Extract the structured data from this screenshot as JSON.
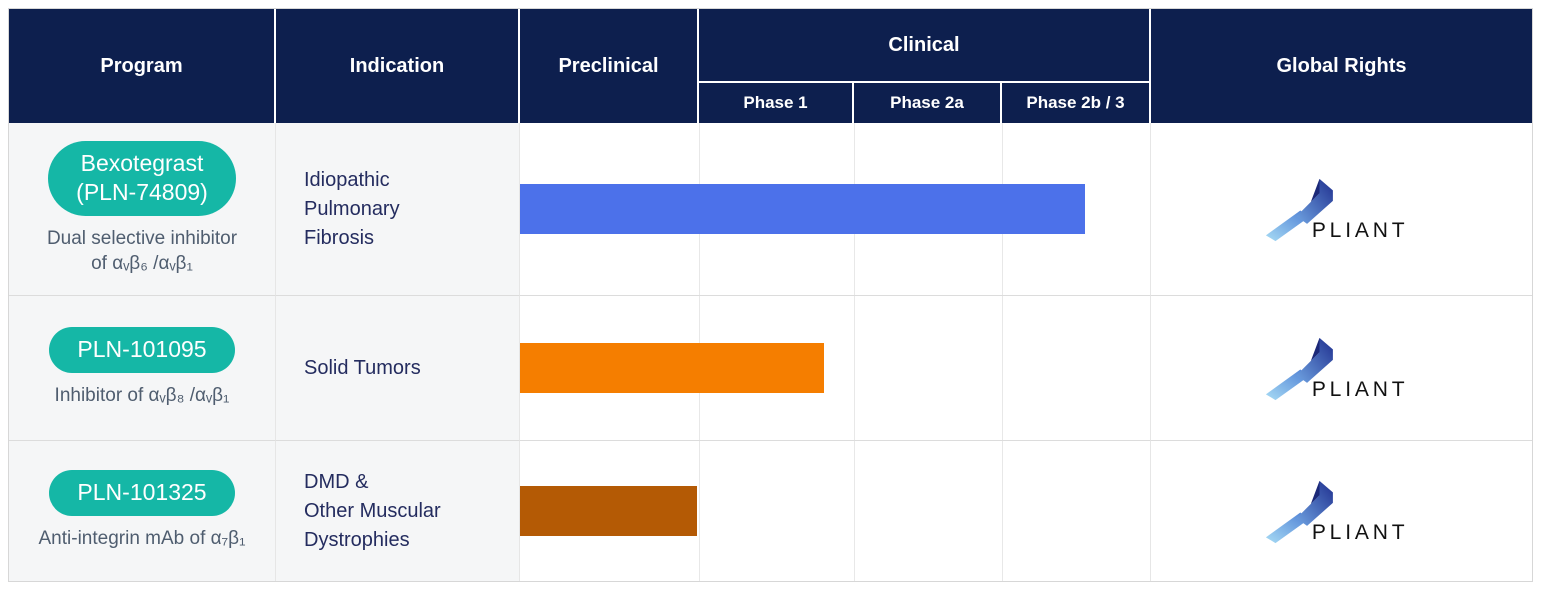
{
  "header": {
    "program": "Program",
    "indication": "Indication",
    "preclinical": "Preclinical",
    "clinical": "Clinical",
    "phases": [
      "Phase 1",
      "Phase 2a",
      "Phase 2b / 3"
    ],
    "global_rights": "Global Rights"
  },
  "logo": {
    "wordmark": "PLIANT",
    "mark_icon": "pliant-zigzag-ribbon",
    "gradient_light": "#a8dcf5",
    "gradient_mid": "#4d7fd4",
    "gradient_dark": "#20308f"
  },
  "colors": {
    "header_navy": "#0d1f4e",
    "pill_teal": "#15b7a6",
    "bar_blue": "#4c71ea",
    "bar_orange": "#f57e00",
    "bar_brown": "#b45a05",
    "cell_gray_bg": "#f5f6f7",
    "text_navy": "#242c5f",
    "text_slate": "#4f5d6f"
  },
  "chart_data": {
    "type": "bar",
    "orientation": "horizontal",
    "stages": [
      "Preclinical",
      "Phase 1",
      "Phase 2a",
      "Phase 2b / 3"
    ],
    "legend": "none",
    "grid": "vertical stage separators",
    "programs": [
      {
        "pill": "Bexotegrast\n(PLN-74809)",
        "description": "Dual selective inhibitor\nof αᵥβ₆ /αᵥβ₁",
        "indication": "Idiopathic\nPulmonary\nFibrosis",
        "stage_reached": "Phase 2b / 3",
        "progress_stage_units": 3.57,
        "bar": {
          "color": "#4c71ea",
          "width_pct": 89.7
        },
        "global_rights": "PLIANT"
      },
      {
        "pill": "PLN-101095",
        "description": "Inhibitor of αᵥβ₈ /αᵥβ₁",
        "indication": "Solid Tumors",
        "stage_reached": "Phase 1",
        "progress_stage_units": 1.82,
        "bar": {
          "color": "#f57e00",
          "width_pct": 48.3
        },
        "global_rights": "PLIANT"
      },
      {
        "pill": "PLN-101325",
        "description": "Anti-integrin mAb of α₇β₁",
        "indication": "DMD &\nOther Muscular\nDystrophies",
        "stage_reached": "Preclinical",
        "progress_stage_units": 1.0,
        "bar": {
          "color": "#b45a05",
          "width_pct": 28.1
        },
        "global_rights": "PLIANT"
      }
    ]
  }
}
